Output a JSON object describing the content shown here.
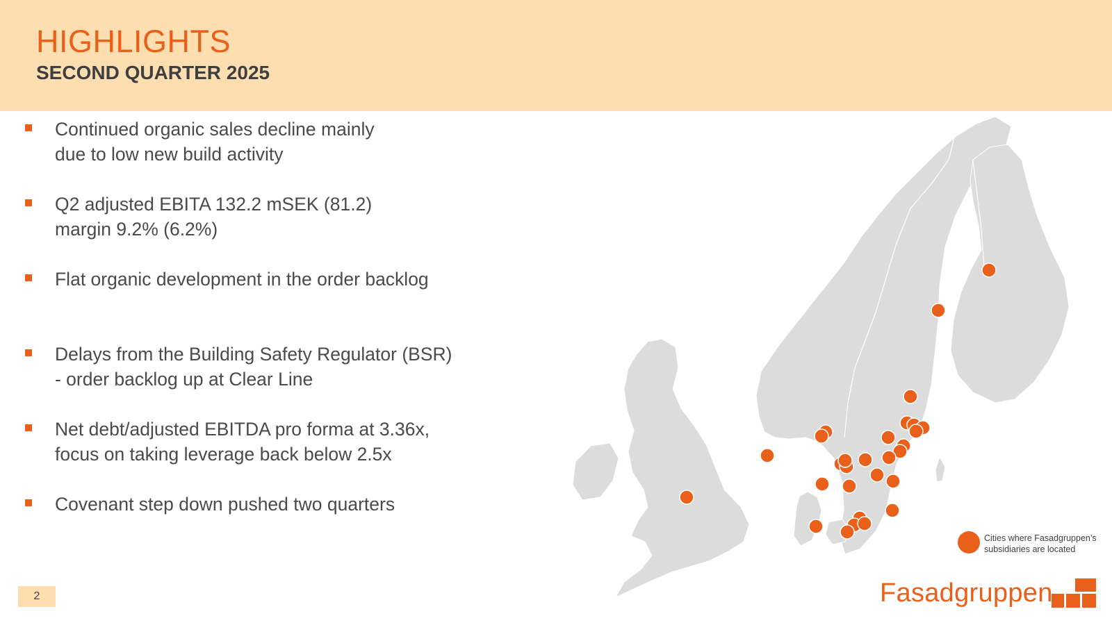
{
  "header": {
    "title": "HIGHLIGHTS",
    "subtitle": "SECOND QUARTER 2025"
  },
  "bullets": [
    {
      "lines": [
        "Continued organic sales decline mainly",
        "due to low new build activity"
      ]
    },
    {
      "lines": [
        "Q2 adjusted EBITA 132.2 mSEK (81.2)",
        "margin 9.2% (6.2%)"
      ]
    },
    {
      "lines": [
        "Flat organic development in the order backlog"
      ]
    },
    {
      "lines": [
        "Delays from the Building Safety Regulator (BSR)",
        "- order backlog up at Clear Line"
      ]
    },
    {
      "lines": [
        "Net debt/adjusted EBITDA pro forma at 3.36x,",
        "focus on taking leverage back below 2.5x"
      ]
    },
    {
      "lines": [
        "Covenant step down pushed two quarters"
      ]
    }
  ],
  "page_number": "2",
  "map": {
    "land_color": "#dcdcdc",
    "marker_color": "#e9601a",
    "legend_text": "Cities where Fasadgruppen’s subsidiaries are located"
  },
  "logo": {
    "text": "Fasadgruppen",
    "color": "#e9601a"
  }
}
